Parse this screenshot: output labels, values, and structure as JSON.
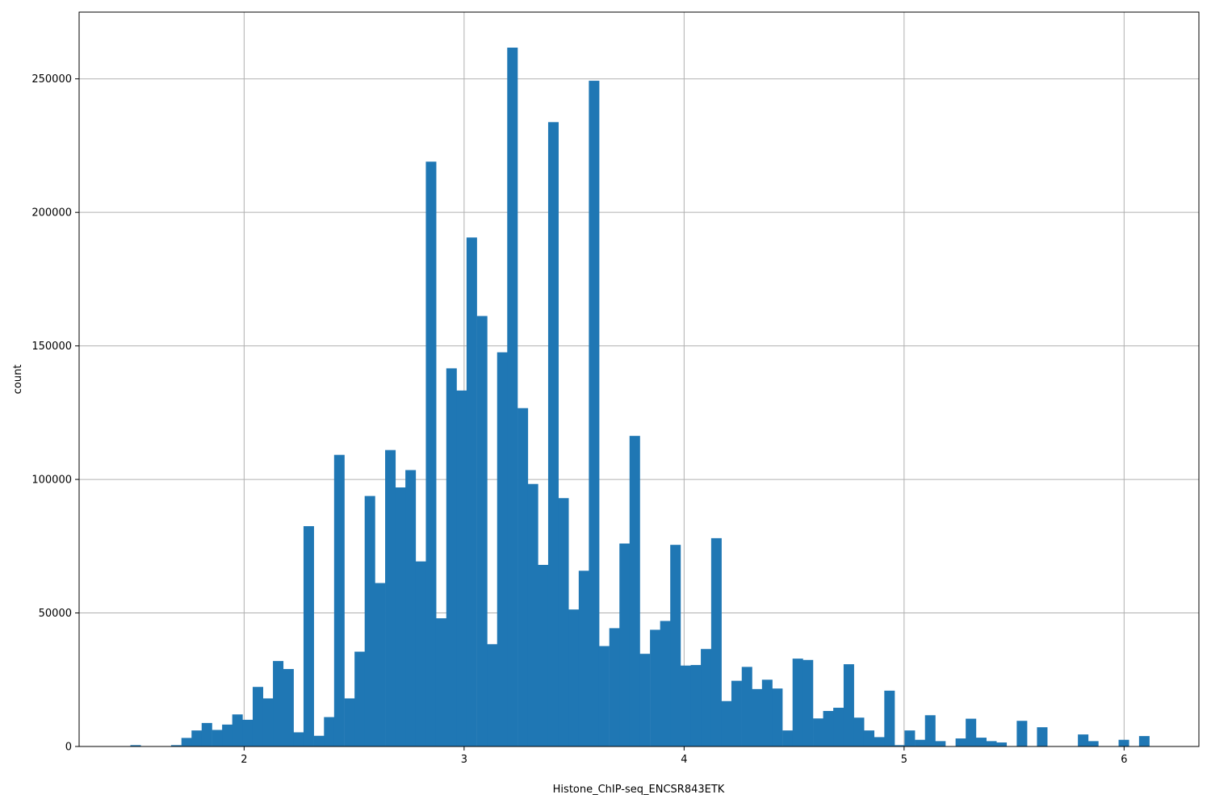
{
  "chart_data": {
    "type": "bar",
    "title": "",
    "xlabel": "Histone_ChIP-seq_ENCSR843ETK",
    "ylabel": "count",
    "xlim": [
      1.25,
      6.34
    ],
    "ylim": [
      0,
      275000
    ],
    "grid": true,
    "bar_color": "#1f77b4",
    "bin_width": 0.0463,
    "xticks": [
      2,
      3,
      4,
      5,
      6
    ],
    "xtick_labels": [
      "2",
      "3",
      "4",
      "5",
      "6"
    ],
    "yticks": [
      0,
      50000,
      100000,
      150000,
      200000,
      250000
    ],
    "ytick_labels": [
      "0",
      "50000",
      "100000",
      "150000",
      "200000",
      "250000"
    ],
    "bin_starts": [
      1.483,
      1.529,
      1.576,
      1.622,
      1.668,
      1.715,
      1.761,
      1.807,
      1.854,
      1.9,
      1.946,
      1.992,
      2.039,
      2.085,
      2.131,
      2.178,
      2.224,
      2.27,
      2.317,
      2.363,
      2.409,
      2.456,
      2.502,
      2.548,
      2.594,
      2.641,
      2.687,
      2.733,
      2.78,
      2.826,
      2.872,
      2.919,
      2.965,
      3.011,
      3.058,
      3.104,
      3.15,
      3.196,
      3.243,
      3.289,
      3.335,
      3.382,
      3.428,
      3.474,
      3.521,
      3.567,
      3.613,
      3.66,
      3.706,
      3.752,
      3.798,
      3.845,
      3.891,
      3.937,
      3.984,
      4.03,
      4.076,
      4.123,
      4.169,
      4.215,
      4.262,
      4.308,
      4.354,
      4.4,
      4.447,
      4.493,
      4.539,
      4.586,
      4.632,
      4.678,
      4.725,
      4.771,
      4.817,
      4.864,
      4.91,
      4.956,
      5.002,
      5.049,
      5.095,
      5.141,
      5.188,
      5.234,
      5.28,
      5.327,
      5.373,
      5.419,
      5.466,
      5.512,
      5.558,
      5.604,
      5.651,
      5.697,
      5.743,
      5.79,
      5.836,
      5.882,
      5.929,
      5.975,
      6.021,
      6.068
    ],
    "values": [
      500,
      0,
      0,
      0,
      500,
      3200,
      6000,
      8800,
      6200,
      8200,
      12000,
      10000,
      22300,
      18000,
      32000,
      29000,
      5300,
      82500,
      4000,
      11000,
      109200,
      18000,
      35500,
      93800,
      61200,
      111000,
      97000,
      103500,
      69300,
      219000,
      48000,
      141600,
      133300,
      190600,
      161200,
      38300,
      147600,
      261700,
      126700,
      98300,
      68000,
      233800,
      93000,
      51300,
      65800,
      249300,
      37600,
      44300,
      76000,
      116300,
      34700,
      43700,
      47000,
      75500,
      30300,
      30500,
      36500,
      78000,
      17000,
      24600,
      29800,
      21500,
      25000,
      21700,
      6000,
      32900,
      32400,
      10500,
      13300,
      14500,
      30800,
      10800,
      6000,
      3500,
      20900,
      500,
      6000,
      2500,
      11700,
      2000,
      0,
      3000,
      10400,
      3300,
      2000,
      1500,
      0,
      9600,
      0,
      7200,
      0,
      0,
      0,
      4500,
      2000,
      0,
      0,
      2500,
      0,
      3900
    ]
  }
}
